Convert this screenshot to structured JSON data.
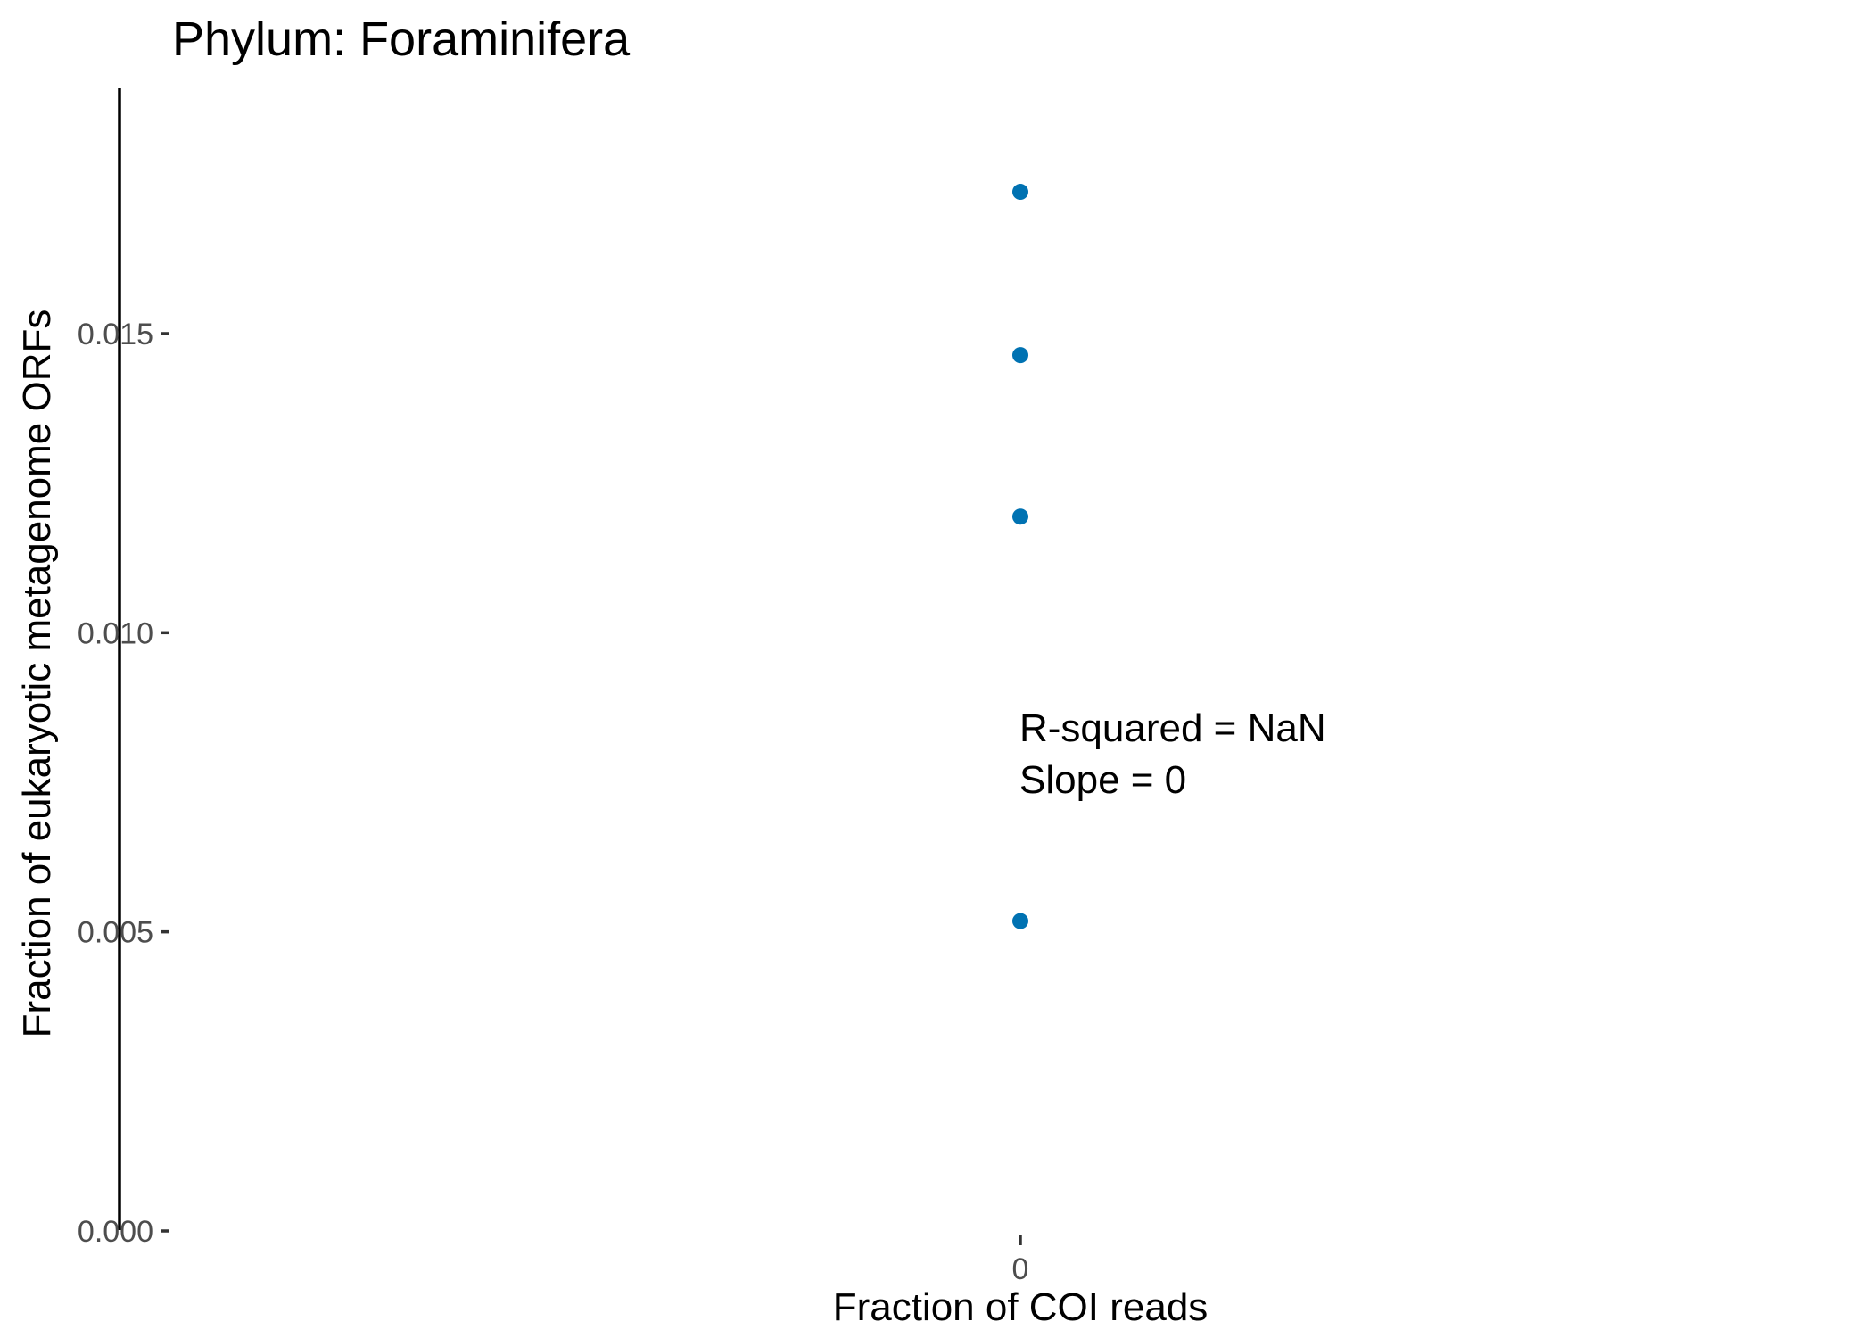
{
  "chart_data": {
    "type": "scatter",
    "title": "Phylum:  Foraminifera",
    "xlabel": "Fraction of COI reads",
    "ylabel": "Fraction of eukaryotic metagenome ORFs",
    "x_ticks": [
      {
        "value": 0,
        "label": "0"
      }
    ],
    "y_ticks": [
      {
        "value": 0.0,
        "label": "0.000"
      },
      {
        "value": 0.005,
        "label": "0.005"
      },
      {
        "value": 0.01,
        "label": "0.010"
      },
      {
        "value": 0.015,
        "label": "0.015"
      }
    ],
    "ylim": [
      0.0,
      0.0191
    ],
    "xlim": [
      -1,
      1
    ],
    "grid": false,
    "legend": "none",
    "point_color": "#0072B2",
    "points": [
      {
        "x": 0,
        "y": 0.01737
      },
      {
        "x": 0,
        "y": 0.01464
      },
      {
        "x": 0,
        "y": 0.01194
      },
      {
        "x": 0,
        "y": 0.00518
      }
    ],
    "annotations": [
      "R-squared =  NaN",
      "Slope =  0"
    ]
  }
}
